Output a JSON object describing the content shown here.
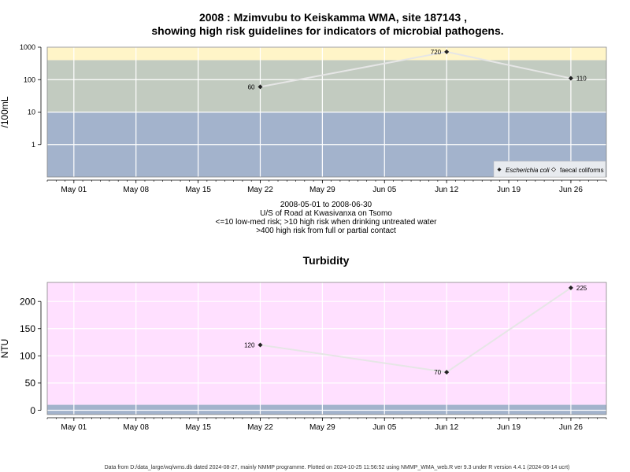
{
  "header": {
    "title_line1": "2008 : Mzimvubu to Keiskamma WMA, site 187143 ,",
    "title_line2": "showing high risk guidelines for indicators of microbial pathogens."
  },
  "caption": {
    "line1": "2008-05-01 to 2008-06-30",
    "line2": "U/S of Road at Kwasivanxa on Tsomo",
    "line3": "<=10 low-med risk; >10 high risk when drinking untreated water",
    "line4": ">400 high risk from full or partial contact"
  },
  "footer": {
    "text": "Data from D:/data_large/wq/wms.db dated 2024-08-27, mainly NMMP programme. Plotted on 2024-10-25 11:56:52 using NMMP_WMA_web.R ver 9.3 under R version 4.4.1 (2024-06-14 ucrt)"
  },
  "colors": {
    "low_band": "#a3b3cc",
    "mid_band": "#c2cbc0",
    "high_band": "#fff5c8",
    "turbidity_bg": "#ffe0ff",
    "grid": "#ffffff",
    "series_line": "#e6e6e6",
    "marker": "#222222"
  },
  "chart_data": [
    {
      "type": "line",
      "title": "",
      "xlabel": "",
      "ylabel": "/100mL",
      "y_scale": "log",
      "ylim": [
        0.1,
        1000
      ],
      "xlim": [
        "2008-04-28",
        "2008-06-30"
      ],
      "y_ticks": [
        1,
        10,
        100,
        1000
      ],
      "y_tick_labels": [
        "1",
        "10",
        "100",
        "1000"
      ],
      "x_ticks": [
        "2008-05-01",
        "2008-05-08",
        "2008-05-15",
        "2008-05-22",
        "2008-05-29",
        "2008-06-05",
        "2008-06-12",
        "2008-06-19",
        "2008-06-26"
      ],
      "x_tick_labels": [
        "May 01",
        "May 08",
        "May 15",
        "May 22",
        "May 29",
        "Jun 05",
        "Jun 12",
        "Jun 19",
        "Jun 26"
      ],
      "bands": [
        {
          "from": 0.1,
          "to": 10,
          "color": "#a3b3cc"
        },
        {
          "from": 10,
          "to": 400,
          "color": "#c2cbc0"
        },
        {
          "from": 400,
          "to": 1000,
          "color": "#fff5c8"
        }
      ],
      "series": [
        {
          "name": "Escherichia coli",
          "marker": "filled-diamond",
          "x": [
            "2008-05-22",
            "2008-06-12",
            "2008-06-26"
          ],
          "y": [
            60,
            720,
            110
          ],
          "labels": [
            "60",
            "720",
            "110"
          ]
        },
        {
          "name": "faecal coliforms",
          "marker": "open-diamond",
          "x": [],
          "y": [],
          "labels": []
        }
      ],
      "legend_position": "bottom-right",
      "grid": true
    },
    {
      "type": "line",
      "title": "Turbidity",
      "xlabel": "",
      "ylabel": "NTU",
      "y_scale": "linear",
      "ylim": [
        -8,
        235
      ],
      "xlim": [
        "2008-04-28",
        "2008-06-30"
      ],
      "y_ticks": [
        0,
        50,
        100,
        150,
        200
      ],
      "y_tick_labels": [
        "0",
        "50",
        "100",
        "150",
        "200"
      ],
      "x_ticks": [
        "2008-05-01",
        "2008-05-08",
        "2008-05-15",
        "2008-05-22",
        "2008-05-29",
        "2008-06-05",
        "2008-06-12",
        "2008-06-19",
        "2008-06-26"
      ],
      "x_tick_labels": [
        "May 01",
        "May 08",
        "May 15",
        "May 22",
        "May 29",
        "Jun 05",
        "Jun 12",
        "Jun 19",
        "Jun 26"
      ],
      "bands": [
        {
          "from": -8,
          "to": 10,
          "color": "#a3b3cc"
        },
        {
          "from": 10,
          "to": 235,
          "color": "#ffe0ff"
        }
      ],
      "series": [
        {
          "name": "",
          "marker": "filled-diamond",
          "x": [
            "2008-05-22",
            "2008-06-12",
            "2008-06-26"
          ],
          "y": [
            120,
            70,
            225
          ],
          "labels": [
            "120",
            "70",
            "225"
          ]
        }
      ],
      "grid": true
    }
  ]
}
